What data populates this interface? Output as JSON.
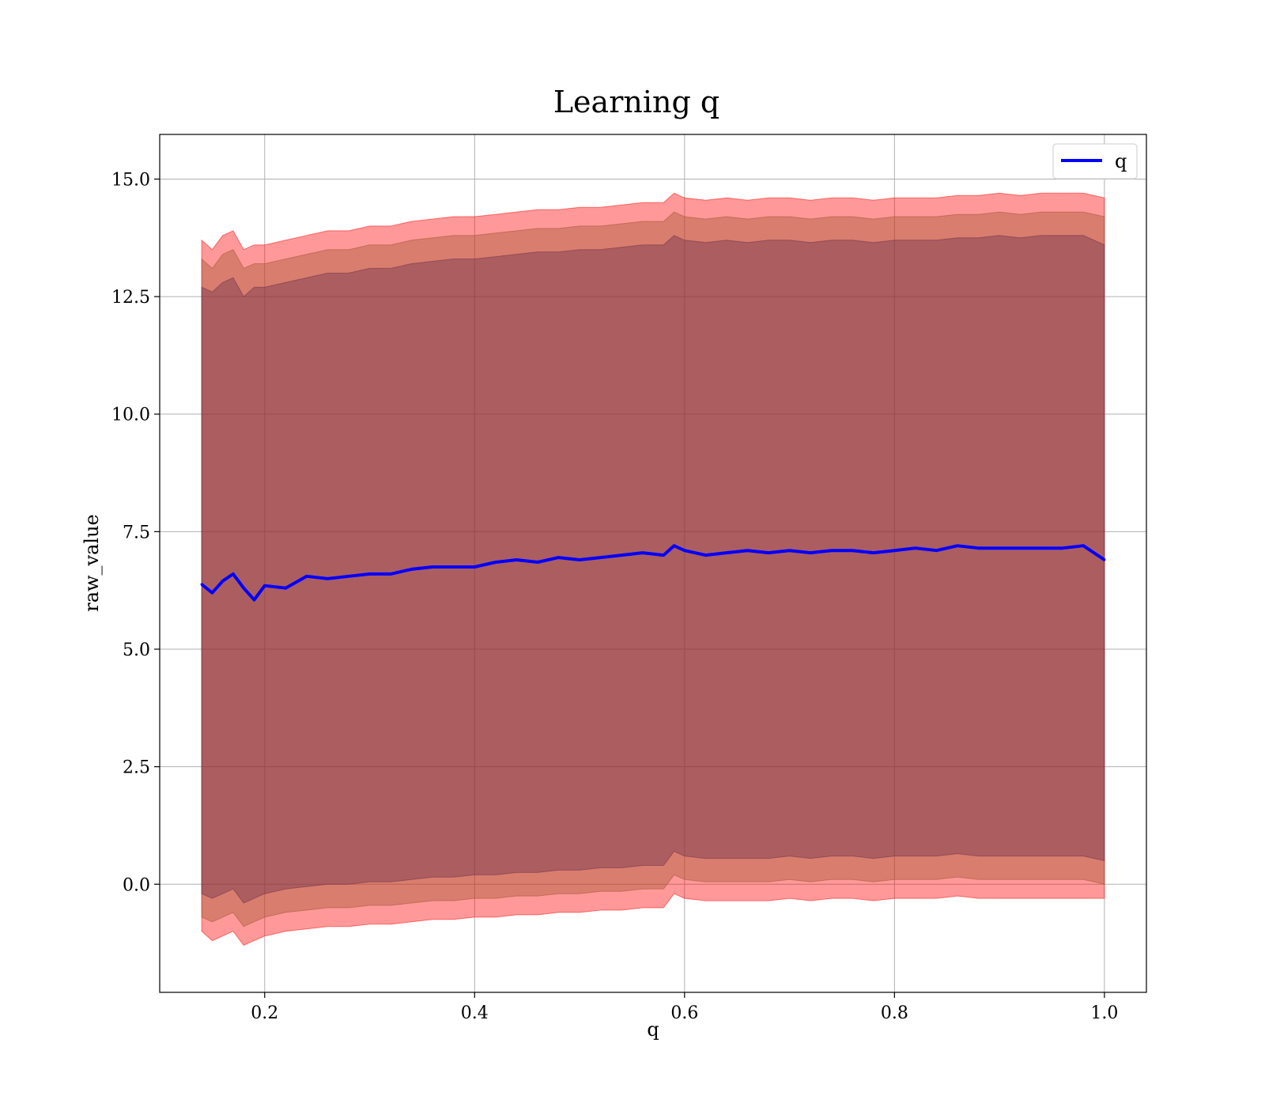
{
  "chart_data": {
    "type": "line",
    "title": "Learning q",
    "xlabel": "q",
    "ylabel": "raw_value",
    "xlim": [
      0.1,
      1.04
    ],
    "ylim": [
      -2.3,
      15.95
    ],
    "x_ticks": [
      0.2,
      0.4,
      0.6,
      0.8,
      1.0
    ],
    "x_tick_labels": [
      "0.2",
      "0.4",
      "0.6",
      "0.8",
      "1.0"
    ],
    "y_ticks": [
      0.0,
      2.5,
      5.0,
      7.5,
      10.0,
      12.5,
      15.0
    ],
    "y_tick_labels": [
      "0.0",
      "2.5",
      "5.0",
      "7.5",
      "10.0",
      "12.5",
      "15.0"
    ],
    "grid": true,
    "legend": {
      "position": "top-right",
      "entries": [
        "q"
      ]
    },
    "x": [
      0.14,
      0.15,
      0.16,
      0.17,
      0.18,
      0.19,
      0.2,
      0.22,
      0.24,
      0.26,
      0.28,
      0.3,
      0.32,
      0.34,
      0.36,
      0.38,
      0.4,
      0.42,
      0.44,
      0.46,
      0.48,
      0.5,
      0.52,
      0.54,
      0.56,
      0.58,
      0.59,
      0.6,
      0.62,
      0.64,
      0.66,
      0.68,
      0.7,
      0.72,
      0.74,
      0.76,
      0.78,
      0.8,
      0.82,
      0.84,
      0.86,
      0.88,
      0.9,
      0.92,
      0.94,
      0.96,
      0.98,
      1.0
    ],
    "series": [
      {
        "name": "q",
        "color": "#0000ff",
        "values": [
          6.38,
          6.2,
          6.45,
          6.6,
          6.3,
          6.05,
          6.35,
          6.3,
          6.55,
          6.5,
          6.55,
          6.6,
          6.6,
          6.7,
          6.75,
          6.75,
          6.75,
          6.85,
          6.9,
          6.85,
          6.95,
          6.9,
          6.95,
          7.0,
          7.05,
          7.0,
          7.2,
          7.1,
          7.0,
          7.05,
          7.1,
          7.05,
          7.1,
          7.05,
          7.1,
          7.1,
          7.05,
          7.1,
          7.15,
          7.1,
          7.2,
          7.15,
          7.15,
          7.15,
          7.15,
          7.15,
          7.2,
          6.9
        ]
      }
    ],
    "bands": [
      {
        "color": "#ff0000",
        "lower": [
          -1.0,
          -1.2,
          -1.1,
          -1.0,
          -1.3,
          -1.2,
          -1.1,
          -1.0,
          -0.95,
          -0.9,
          -0.9,
          -0.85,
          -0.85,
          -0.8,
          -0.75,
          -0.75,
          -0.7,
          -0.7,
          -0.65,
          -0.65,
          -0.6,
          -0.6,
          -0.55,
          -0.55,
          -0.5,
          -0.5,
          -0.2,
          -0.3,
          -0.35,
          -0.35,
          -0.35,
          -0.35,
          -0.3,
          -0.35,
          -0.3,
          -0.3,
          -0.35,
          -0.3,
          -0.3,
          -0.3,
          -0.25,
          -0.3,
          -0.3,
          -0.3,
          -0.3,
          -0.3,
          -0.3,
          -0.3
        ],
        "upper": [
          13.7,
          13.5,
          13.8,
          13.9,
          13.5,
          13.6,
          13.6,
          13.7,
          13.8,
          13.9,
          13.9,
          14.0,
          14.0,
          14.1,
          14.15,
          14.2,
          14.2,
          14.25,
          14.3,
          14.35,
          14.35,
          14.4,
          14.4,
          14.45,
          14.5,
          14.5,
          14.7,
          14.6,
          14.55,
          14.6,
          14.55,
          14.6,
          14.6,
          14.55,
          14.6,
          14.6,
          14.55,
          14.6,
          14.6,
          14.6,
          14.65,
          14.65,
          14.7,
          14.65,
          14.7,
          14.7,
          14.7,
          14.6
        ]
      },
      {
        "color": "#a0522d",
        "lower": [
          -0.7,
          -0.8,
          -0.7,
          -0.6,
          -0.9,
          -0.8,
          -0.7,
          -0.6,
          -0.55,
          -0.5,
          -0.5,
          -0.45,
          -0.45,
          -0.4,
          -0.35,
          -0.35,
          -0.3,
          -0.3,
          -0.25,
          -0.25,
          -0.2,
          -0.2,
          -0.15,
          -0.15,
          -0.1,
          -0.1,
          0.2,
          0.1,
          0.05,
          0.05,
          0.05,
          0.05,
          0.1,
          0.05,
          0.1,
          0.1,
          0.05,
          0.1,
          0.1,
          0.1,
          0.15,
          0.1,
          0.1,
          0.1,
          0.1,
          0.1,
          0.1,
          0.0
        ],
        "upper": [
          13.3,
          13.1,
          13.4,
          13.5,
          13.1,
          13.2,
          13.2,
          13.3,
          13.4,
          13.5,
          13.5,
          13.6,
          13.6,
          13.7,
          13.75,
          13.8,
          13.8,
          13.85,
          13.9,
          13.95,
          13.95,
          14.0,
          14.0,
          14.05,
          14.1,
          14.1,
          14.3,
          14.2,
          14.15,
          14.2,
          14.15,
          14.2,
          14.2,
          14.15,
          14.2,
          14.2,
          14.15,
          14.2,
          14.2,
          14.2,
          14.25,
          14.25,
          14.3,
          14.25,
          14.3,
          14.3,
          14.3,
          14.2
        ]
      },
      {
        "color": "#6a2e4a",
        "lower": [
          -0.2,
          -0.3,
          -0.2,
          -0.1,
          -0.4,
          -0.3,
          -0.2,
          -0.1,
          -0.05,
          0.0,
          0.0,
          0.05,
          0.05,
          0.1,
          0.15,
          0.15,
          0.2,
          0.2,
          0.25,
          0.25,
          0.3,
          0.3,
          0.35,
          0.35,
          0.4,
          0.4,
          0.7,
          0.6,
          0.55,
          0.55,
          0.55,
          0.55,
          0.6,
          0.55,
          0.6,
          0.6,
          0.55,
          0.6,
          0.6,
          0.6,
          0.65,
          0.6,
          0.6,
          0.6,
          0.6,
          0.6,
          0.6,
          0.5
        ],
        "upper": [
          12.7,
          12.6,
          12.8,
          12.9,
          12.5,
          12.7,
          12.7,
          12.8,
          12.9,
          13.0,
          13.0,
          13.1,
          13.1,
          13.2,
          13.25,
          13.3,
          13.3,
          13.35,
          13.4,
          13.45,
          13.45,
          13.5,
          13.5,
          13.55,
          13.6,
          13.6,
          13.8,
          13.7,
          13.65,
          13.7,
          13.65,
          13.7,
          13.7,
          13.65,
          13.7,
          13.7,
          13.65,
          13.7,
          13.7,
          13.7,
          13.75,
          13.75,
          13.8,
          13.75,
          13.8,
          13.8,
          13.8,
          13.6
        ]
      }
    ]
  }
}
